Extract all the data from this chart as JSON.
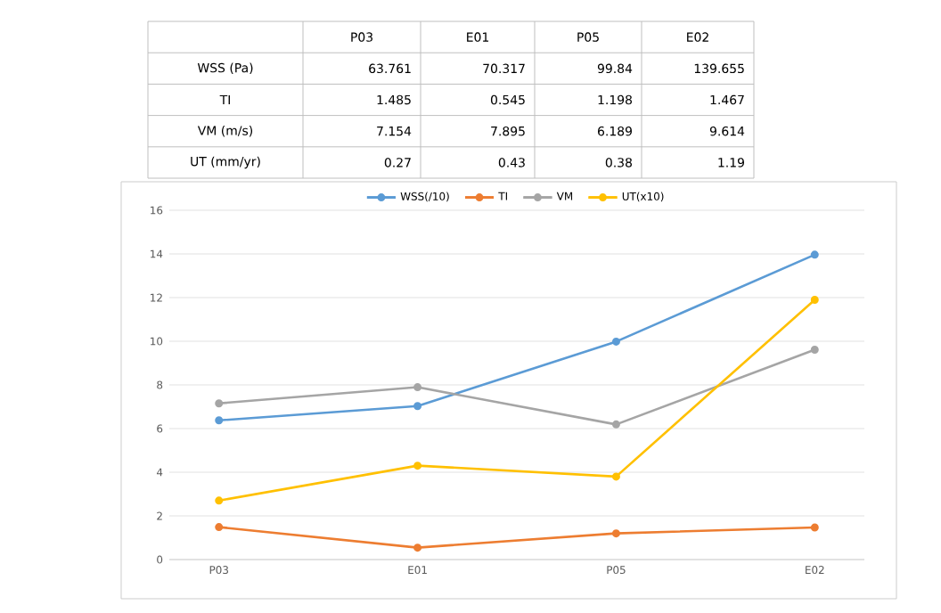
{
  "chart_data": [
    {
      "type": "other",
      "categories": [
        "P03",
        "E01",
        "P05",
        "E02"
      ],
      "y_categories": [
        "WSS (Pa)",
        "TI",
        "VM (m/s)",
        "UT (mm/yr)"
      ],
      "cell_labels": [
        [
          "63.761",
          "70.317",
          "99.84",
          "139.655"
        ],
        [
          "1.485",
          "0.545",
          "1.198",
          "1.467"
        ],
        [
          "7.154",
          "7.895",
          "6.189",
          "9.614"
        ],
        [
          "0.27",
          "0.43",
          "0.38",
          "1.19"
        ]
      ]
    },
    {
      "type": "line",
      "categories": [
        "P03",
        "E01",
        "P05",
        "E02"
      ],
      "series": [
        {
          "name": "WSS(/10)",
          "color": "#5b9bd5",
          "values": [
            6.3761,
            7.0317,
            9.984,
            13.9655
          ]
        },
        {
          "name": "TI",
          "color": "#ed7d31",
          "values": [
            1.485,
            0.545,
            1.198,
            1.467
          ]
        },
        {
          "name": "VM",
          "color": "#a5a5a5",
          "values": [
            7.154,
            7.895,
            6.189,
            9.614
          ]
        },
        {
          "name": "UT(x10)",
          "color": "#ffc000",
          "values": [
            2.7,
            4.3,
            3.8,
            11.9
          ]
        }
      ],
      "ylim": [
        0,
        16
      ],
      "yticks": [
        0,
        2,
        4,
        6,
        8,
        10,
        12,
        14,
        16
      ],
      "grid": "y",
      "legend": "top",
      "marker": "circle",
      "line_style": "solid"
    }
  ]
}
